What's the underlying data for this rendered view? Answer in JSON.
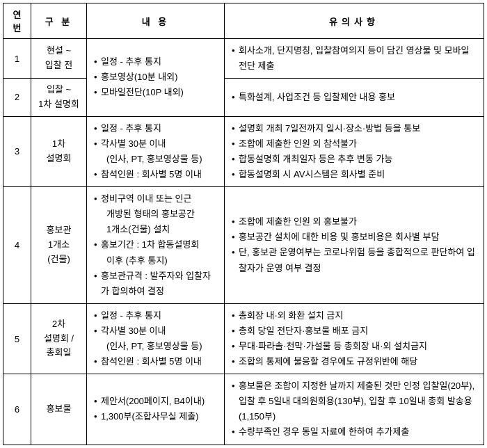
{
  "header": {
    "col_num": "연번",
    "col_category": "구 분",
    "col_content": "내 용",
    "col_notes": "유의사항"
  },
  "rows": [
    {
      "num": "1",
      "category": "현설 ~\n입찰 전",
      "content_items": [
        "일정 - 추후 통지",
        "홍보영상(10분 내외)",
        "모바일전단(10P 내외)"
      ],
      "notes_items": [
        "회사소개, 단지명칭, 입찰참여의지 등이 담긴 영상물 및 모바일 전단 제출"
      ],
      "content_rowspan": 2
    },
    {
      "num": "2",
      "category": "입찰 ~\n1차 설명회",
      "notes_items": [
        "특화설계, 사업조건 등 입찰제안 내용 홍보"
      ]
    },
    {
      "num": "3",
      "category": "1차\n설명회",
      "content_items": [
        "일정 - 추후 통지",
        "각사별 30분 이내",
        "_sub_(인사, PT, 홍보영상물 등)",
        "참석인원 : 회사별 5명 이내"
      ],
      "notes_items": [
        "설명회 개최 7일전까지 일시·장소·방법 등을 통보",
        "조합에 제출한 인원 외 참석불가",
        "합동설명회 개최일자 등은 추후 변동 가능",
        "합동설명회 시 AV시스템은 회사별 준비"
      ]
    },
    {
      "num": "4",
      "category": "홍보관\n1개소\n(건물)",
      "content_items": [
        "정비구역 이내 또는 인근",
        "_sub_개방된 형태의 홍보공간",
        "_sub_1개소(건물) 설치",
        "홍보기간 : 1차 합동설명회",
        "_sub_이후 (추후 통지)",
        "홍보관규격 : 발주자와 입찰자가 합의하여 결정"
      ],
      "notes_items": [
        "조합에 제출한 인원 외 홍보불가",
        "홍보공간 설치에 대한 비용 및 홍보비용은 회사별 부담",
        "단, 홍보관 운영여부는 코로나위험 등을 종합적으로 판단하여 입찰자가 운영 여부 결정"
      ]
    },
    {
      "num": "5",
      "category": "2차\n설명회 /\n총회일",
      "content_items": [
        "일정 - 추후 통지",
        "각사별 30분 이내",
        "_sub_(인사, PT, 홍보영상물 등)",
        "참석인원 : 회사별 5명 이내"
      ],
      "notes_items": [
        "총회장 내·외 화환 설치 금지",
        "총회 당일 전단자·홍보물 배포 금지",
        "무대·파라솔·천막·가설물 등 총회장 내·외 설치금지",
        "조합의 통제에 불응할 경우에도 규정위반에 해당"
      ]
    },
    {
      "num": "6",
      "category": "홍보물",
      "content_items": [
        "제안서(200페이지, B4이내)",
        "1,300부(조합사무실 제출)"
      ],
      "notes_items": [
        "홍보물은 조합이 지정한 날까지 제출된 것만 인정 입찰일(20부), 입찰 후 5일내 대의원회용(130부), 입찰 후 10일내 총회 발송용(1,150부)",
        "수량부족인 경우 동일 자료에 한하여 추가제출"
      ]
    }
  ]
}
